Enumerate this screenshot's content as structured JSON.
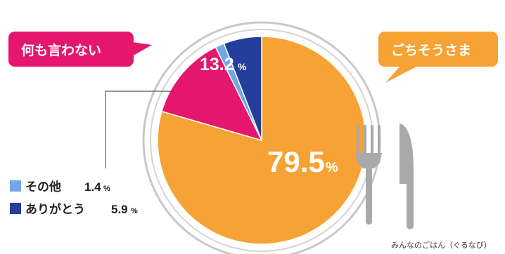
{
  "chart_data": {
    "type": "pie",
    "title": "",
    "slices": [
      {
        "label": "ごちそうさま",
        "value": 79.5,
        "display": "79.5",
        "unit": "%",
        "color": "#F7A234"
      },
      {
        "label": "何も言わない",
        "value": 13.2,
        "display": "13.2",
        "unit": "%",
        "color": "#E5176C"
      },
      {
        "label": "その他",
        "value": 1.4,
        "display": "1.4",
        "unit": "%",
        "color": "#6EA8E8"
      },
      {
        "label": "ありがとう",
        "value": 5.9,
        "display": "5.9",
        "unit": "%",
        "color": "#243E9C"
      }
    ],
    "start_angle_deg": 0,
    "direction": "clockwise"
  },
  "callouts": {
    "left": {
      "text": "何も言わない",
      "color": "#E5176C"
    },
    "right": {
      "text": "ごちそうさま",
      "color": "#F7A234"
    }
  },
  "legend": [
    {
      "label": "その他",
      "value": "1.4",
      "unit": "%",
      "color": "#6EA8E8"
    },
    {
      "label": "ありがとう",
      "value": "5.9",
      "unit": "%",
      "color": "#243E9C"
    }
  ],
  "source": "みんなのごはん（ぐるなび）",
  "decor": {
    "plate_rim": "#BBBBBB",
    "cutlery": "#A9A9A9"
  }
}
